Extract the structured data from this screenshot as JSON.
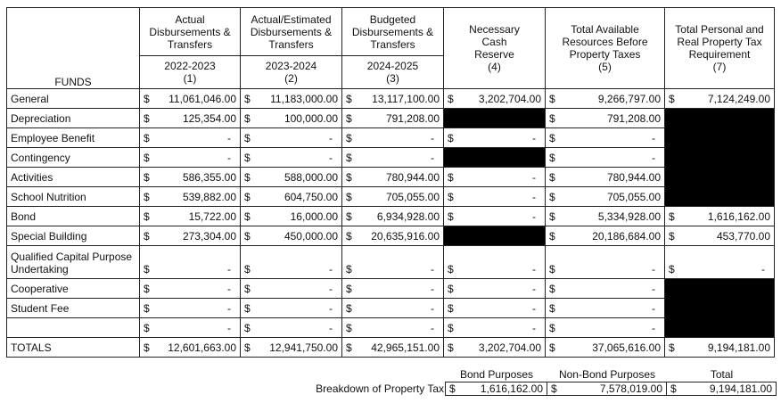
{
  "header": {
    "funds": "FUNDS",
    "columns": [
      {
        "title": "Actual Disbursements & Transfers",
        "year": "2022-2023",
        "num": "(1)"
      },
      {
        "title": "Actual/Estimated Disbursements & Transfers",
        "year": "2023-2024",
        "num": "(2)"
      },
      {
        "title": "Budgeted Disbursements & Transfers",
        "year": "2024-2025",
        "num": "(3)"
      },
      {
        "title": "Necessary Cash Reserve",
        "num": "(4)"
      },
      {
        "title": "Total Available Resources Before Property Taxes",
        "num": "(5)"
      },
      {
        "title": "Total Personal and Real Property Tax Requirement",
        "num": "(7)"
      }
    ]
  },
  "currency": "$",
  "rows": [
    {
      "fund": "General",
      "values": [
        "11,061,046.00",
        "11,183,000.00",
        "13,117,100.00",
        "3,202,704.00",
        "9,266,797.00",
        "7,124,249.00"
      ]
    },
    {
      "fund": "Depreciation",
      "values": [
        "125,354.00",
        "100,000.00",
        "791,208.00",
        null,
        "791,208.00",
        null
      ]
    },
    {
      "fund": "Employee Benefit",
      "values": [
        "-",
        "-",
        "-",
        "-",
        "-",
        null
      ]
    },
    {
      "fund": "Contingency",
      "values": [
        "-",
        "-",
        "-",
        null,
        "-",
        null
      ]
    },
    {
      "fund": "Activities",
      "values": [
        "586,355.00",
        "588,000.00",
        "780,944.00",
        "-",
        "780,944.00",
        null
      ]
    },
    {
      "fund": "School Nutrition",
      "values": [
        "539,882.00",
        "604,750.00",
        "705,055.00",
        "-",
        "705,055.00",
        null
      ]
    },
    {
      "fund": "Bond",
      "values": [
        "15,722.00",
        "16,000.00",
        "6,934,928.00",
        "-",
        "5,334,928.00",
        "1,616,162.00"
      ]
    },
    {
      "fund": "Special Building",
      "values": [
        "273,304.00",
        "450,000.00",
        "20,635,916.00",
        null,
        "20,186,684.00",
        "453,770.00"
      ]
    },
    {
      "fund": "Qualified Capital Purpose Undertaking",
      "values": [
        "-",
        "-",
        "-",
        "-",
        "-",
        "-"
      ]
    },
    {
      "fund": "Cooperative",
      "values": [
        "-",
        "-",
        "-",
        "-",
        "-",
        null
      ]
    },
    {
      "fund": "Student Fee",
      "values": [
        "-",
        "-",
        "-",
        "-",
        "-",
        null
      ]
    },
    {
      "fund": "",
      "values": [
        "-",
        "-",
        "-",
        "-",
        "-",
        null
      ]
    },
    {
      "fund": "TOTALS",
      "values": [
        "12,601,663.00",
        "12,941,750.00",
        "42,965,151.00",
        "3,202,704.00",
        "37,065,616.00",
        "9,194,181.00"
      ]
    }
  ],
  "breakdown": {
    "title": "Breakdown of Property Tax",
    "labels": [
      "Bond Purposes",
      "Non-Bond Purposes",
      "Total"
    ],
    "values": [
      "1,616,162.00",
      "7,578,019.00",
      "9,194,181.00"
    ]
  }
}
